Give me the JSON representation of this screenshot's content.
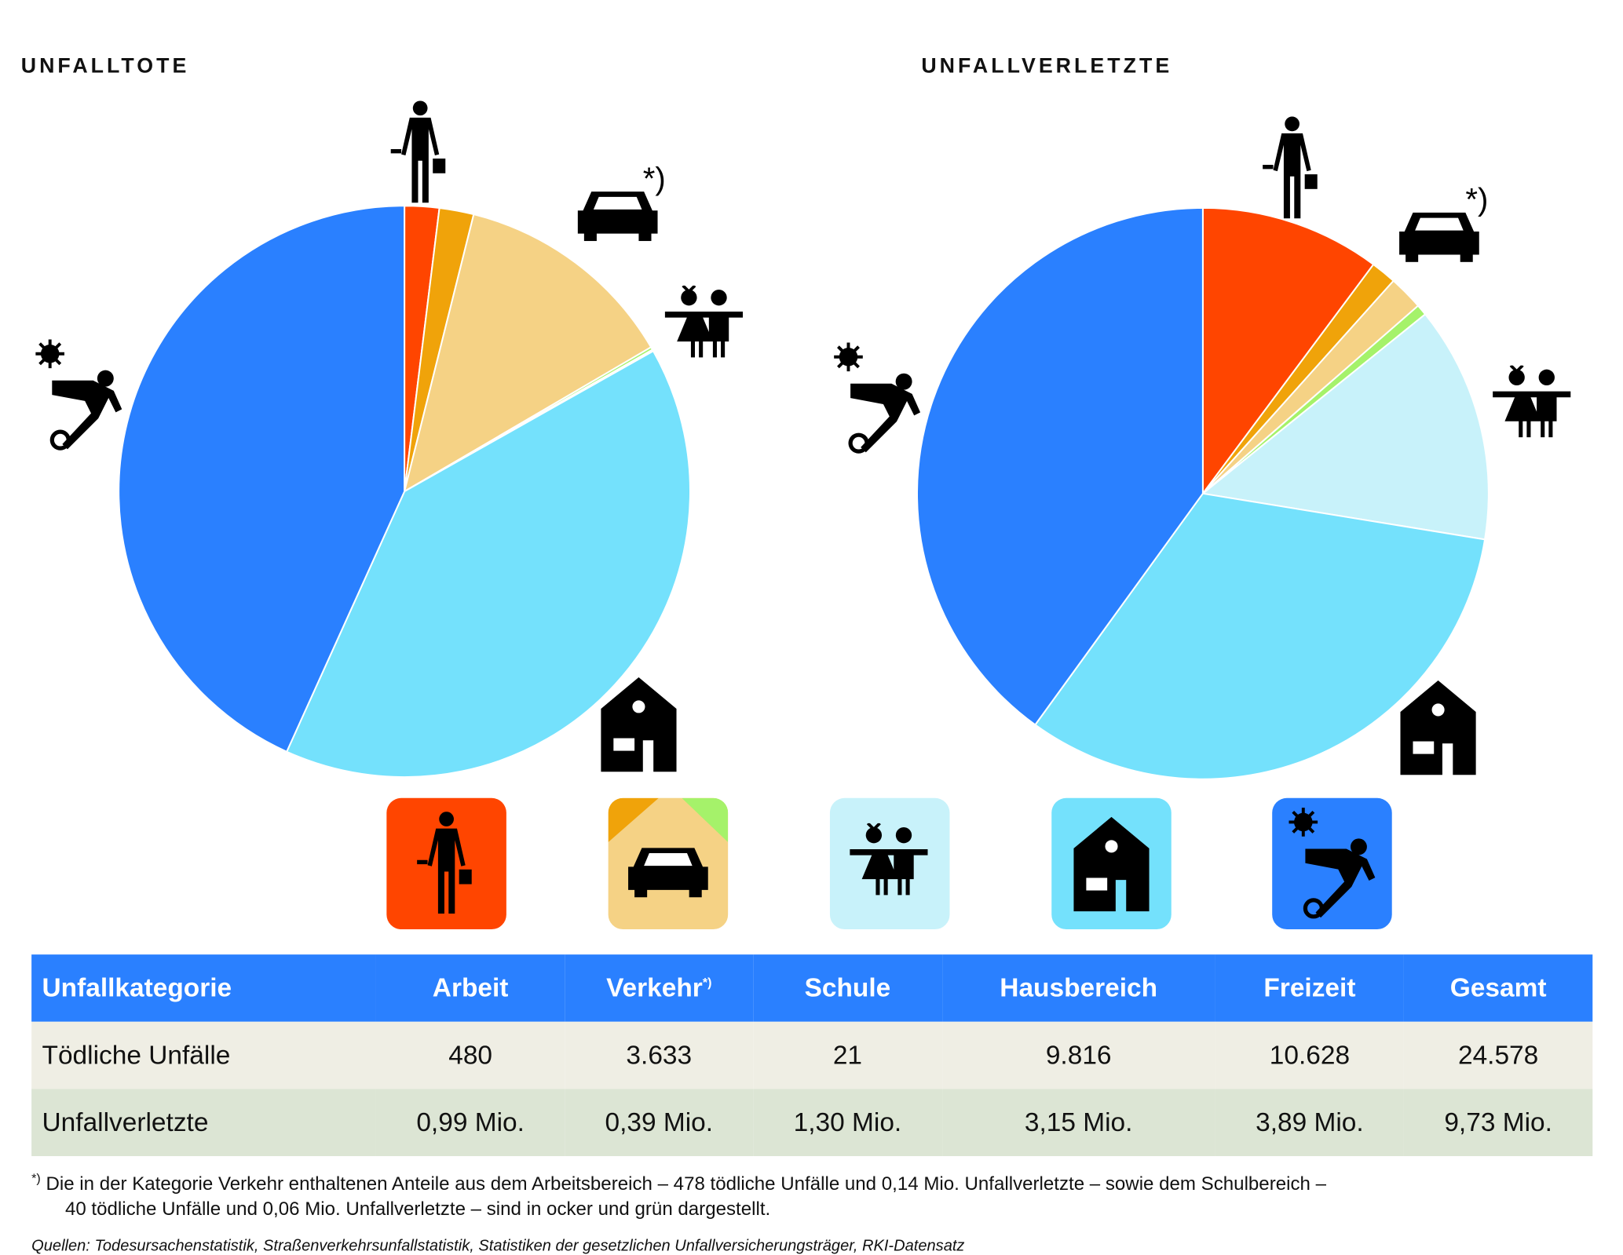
{
  "titles": {
    "left": "UNFALLTOTE",
    "right": "UNFALLVERLETZTE"
  },
  "asterisk": "*)",
  "colors": {
    "arbeit": "#ff4500",
    "arbeit_verkehr": "#f0a30a",
    "verkehr": "#f5d285",
    "schule_verkehr": "#a5f26a",
    "schule": "#c8f2fa",
    "haus": "#74e1fc",
    "freizeit": "#2a80ff"
  },
  "chart_data": [
    {
      "type": "pie",
      "title": "UNFALLTOTE",
      "unit": "Anzahl",
      "start": "12 o'clock, clockwise",
      "slices": [
        {
          "name": "Arbeit",
          "value": 480,
          "color": "#ff4500"
        },
        {
          "name": "Verkehr (Arbeitsbereich)",
          "value": 478,
          "color": "#f0a30a"
        },
        {
          "name": "Verkehr",
          "value": 3115,
          "color": "#f5d285"
        },
        {
          "name": "Verkehr (Schulbereich)",
          "value": 40,
          "color": "#a5f26a"
        },
        {
          "name": "Schule",
          "value": 21,
          "color": "#c8f2fa"
        },
        {
          "name": "Hausbereich",
          "value": 9816,
          "color": "#74e1fc"
        },
        {
          "name": "Freizeit",
          "value": 10628,
          "color": "#2a80ff"
        }
      ]
    },
    {
      "type": "pie",
      "title": "UNFALLVERLETZTE",
      "unit": "Mio.",
      "slices": [
        {
          "name": "Arbeit",
          "value": 0.99,
          "color": "#ff4500"
        },
        {
          "name": "Verkehr (Arbeitsbereich)",
          "value": 0.14,
          "color": "#f0a30a"
        },
        {
          "name": "Verkehr",
          "value": 0.19,
          "color": "#f5d285"
        },
        {
          "name": "Verkehr (Schulbereich)",
          "value": 0.06,
          "color": "#a5f26a"
        },
        {
          "name": "Schule",
          "value": 1.3,
          "color": "#c8f2fa"
        },
        {
          "name": "Hausbereich",
          "value": 3.15,
          "color": "#74e1fc"
        },
        {
          "name": "Freizeit",
          "value": 3.89,
          "color": "#2a80ff"
        }
      ]
    }
  ],
  "table": {
    "headers": [
      "Unfallkategorie",
      "Arbeit",
      "Verkehr",
      "Schule",
      "Hausbereich",
      "Freizeit",
      "Gesamt"
    ],
    "header_sup": "*)",
    "rows": [
      [
        "Tödliche Unfälle",
        "480",
        "3.633",
        "21",
        "9.816",
        "10.628",
        "24.578"
      ],
      [
        "Unfallverletzte",
        "0,99 Mio.",
        "0,39 Mio.",
        "1,30 Mio.",
        "3,15 Mio.",
        "3,89 Mio.",
        "9,73 Mio."
      ]
    ]
  },
  "footnote": {
    "mark": "*)",
    "line1": "Die in der Kategorie Verkehr enthaltenen Anteile aus dem Arbeitsbereich – 478 tödliche Unfälle und 0,14 Mio. Unfallverletzte – sowie dem Schulbereich –",
    "line2": "40 tödliche Unfälle und 0,06 Mio. Unfallverletzte – sind in ocker und grün dargestellt."
  },
  "source": "Quellen: Todesursachenstatistik, Straßenverkehrsunfallstatistik, Statistiken der gesetzlichen Unfallversicherungsträger, RKI-Datensatz"
}
